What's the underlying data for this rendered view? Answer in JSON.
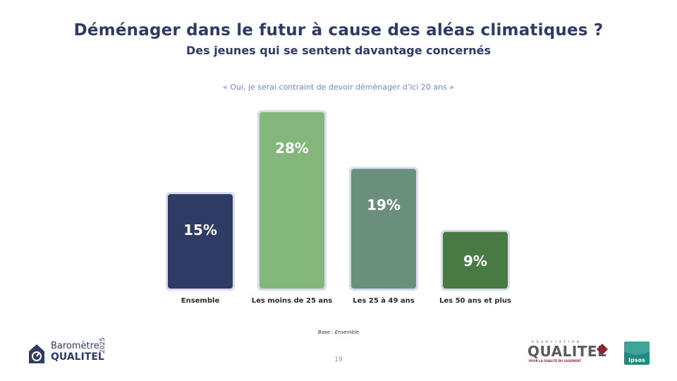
{
  "header": {
    "title": "Déménager dans le futur à cause des aléas climatiques ?",
    "subtitle": "Des jeunes qui se sentent davantage concernés",
    "quote": "« Oui, je serai contraint de devoir déménager d’ici 20 ans »"
  },
  "chart_data": {
    "type": "bar",
    "categories": [
      "Ensemble",
      "Les moins de 25 ans",
      "Les 25 à 49 ans",
      "Les 50 ans et plus"
    ],
    "values": [
      15,
      28,
      19,
      9
    ],
    "data_labels": [
      "15%",
      "28%",
      "19%",
      "9%"
    ],
    "colors": [
      "#2f3b63",
      "#84b77c",
      "#6a8f7c",
      "#4a7a44"
    ],
    "unit": "%",
    "ylim": [
      0,
      28
    ],
    "grid": false,
    "legend": "none"
  },
  "footer": {
    "base_note": "Base : Ensemble",
    "page_number": "19",
    "barometre_line1": "Baromètre",
    "barometre_line2": "QUALITEL",
    "barometre_year": "2025",
    "qualitel_assoc": "ASSOCIATION",
    "qualitel_name": "QUALITEL",
    "qualitel_tagline": "POUR LA QUALITÉ DU LOGEMENT",
    "ipsos": "Ipsos"
  },
  "colors": {
    "title": "#2f3b63",
    "quote": "#6e86c6",
    "bar_border": "#d9dcef",
    "qualitel_accent": "#8b2635",
    "ipsos_bg": "#1f8a80"
  }
}
